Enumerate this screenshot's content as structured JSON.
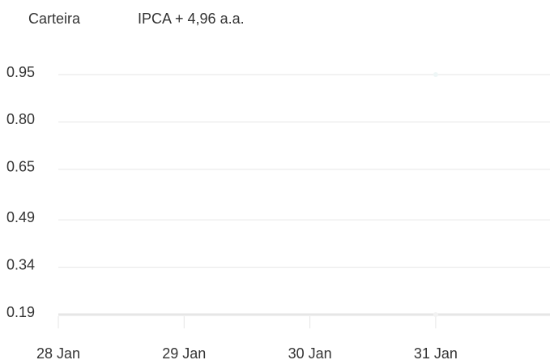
{
  "chart_data": {
    "type": "line",
    "categories": [
      "28 Jan",
      "29 Jan",
      "30 Jan",
      "31 Jan"
    ],
    "series": [
      {
        "name": "Carteira",
        "color": "#eef6f6",
        "values": [
          null,
          null,
          null,
          0.95
        ]
      },
      {
        "name": "IPCA + 4,96 a.a.",
        "color": "#f2f2f2",
        "values": [
          null,
          null,
          null,
          0.19
        ]
      }
    ],
    "ylim": [
      0.19,
      0.95
    ],
    "yticks": [
      0.19,
      0.34,
      0.49,
      0.65,
      {
        "value": 0.8,
        "label": "0.80"
      },
      0.95
    ],
    "grid": true
  }
}
